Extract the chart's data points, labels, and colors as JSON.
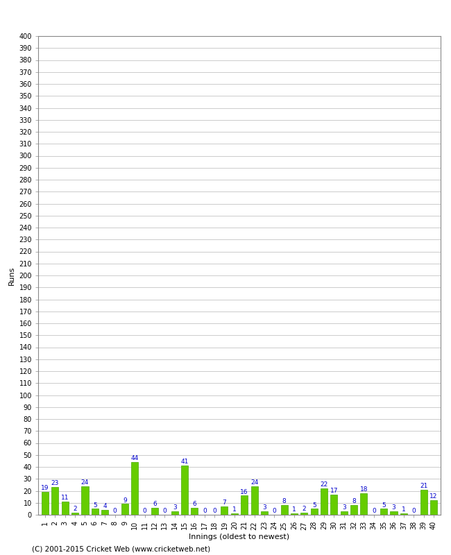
{
  "title": "",
  "xlabel": "Innings (oldest to newest)",
  "ylabel": "Runs",
  "innings": [
    1,
    2,
    3,
    4,
    5,
    6,
    7,
    8,
    9,
    10,
    11,
    12,
    13,
    14,
    15,
    16,
    17,
    18,
    19,
    20,
    21,
    22,
    23,
    24,
    25,
    26,
    27,
    28,
    29,
    30,
    31,
    32,
    33,
    34,
    35,
    36,
    37,
    38,
    39,
    40
  ],
  "values": [
    19,
    23,
    11,
    2,
    24,
    5,
    4,
    0,
    9,
    44,
    0,
    6,
    0,
    3,
    41,
    6,
    0,
    0,
    7,
    1,
    16,
    24,
    3,
    0,
    8,
    1,
    2,
    5,
    22,
    17,
    3,
    8,
    18,
    0,
    5,
    3,
    1,
    0,
    21,
    12
  ],
  "bar_color": "#66cc00",
  "bar_edge_color": "#44aa00",
  "label_color": "#0000cc",
  "ylim": [
    0,
    400
  ],
  "yticks": [
    0,
    10,
    20,
    30,
    40,
    50,
    60,
    70,
    80,
    90,
    100,
    110,
    120,
    130,
    140,
    150,
    160,
    170,
    180,
    190,
    200,
    210,
    220,
    230,
    240,
    250,
    260,
    270,
    280,
    290,
    300,
    310,
    320,
    330,
    340,
    350,
    360,
    370,
    380,
    390,
    400
  ],
  "background_color": "#ffffff",
  "grid_color": "#cccccc",
  "footer": "(C) 2001-2015 Cricket Web (www.cricketweb.net)",
  "axis_label_fontsize": 8,
  "tick_fontsize": 7,
  "bar_label_fontsize": 6.5
}
